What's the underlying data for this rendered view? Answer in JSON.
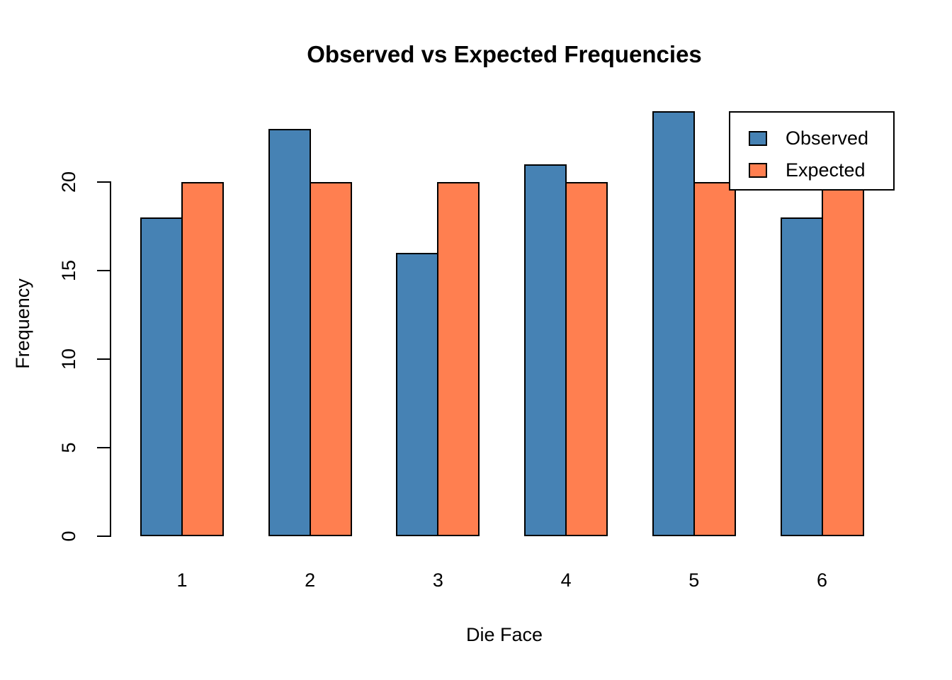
{
  "chart_data": {
    "type": "bar",
    "title": "Observed vs Expected Frequencies",
    "xlabel": "Die Face",
    "ylabel": "Frequency",
    "categories": [
      "1",
      "2",
      "3",
      "4",
      "5",
      "6"
    ],
    "series": [
      {
        "name": "Observed",
        "color": "#4682B4",
        "values": [
          18,
          23,
          16,
          21,
          24,
          18
        ]
      },
      {
        "name": "Expected",
        "color": "#FF7F50",
        "values": [
          20,
          20,
          20,
          20,
          20,
          20
        ]
      }
    ],
    "ylim": [
      0,
      24
    ],
    "yticks": [
      0,
      5,
      10,
      15,
      20
    ],
    "grid": false,
    "legend_position": "top-right",
    "bar_border_color": "#000000",
    "axis_color": "#000000",
    "background_color": "#FFFFFF",
    "legend_entries": [
      "Observed",
      "Expected"
    ]
  }
}
